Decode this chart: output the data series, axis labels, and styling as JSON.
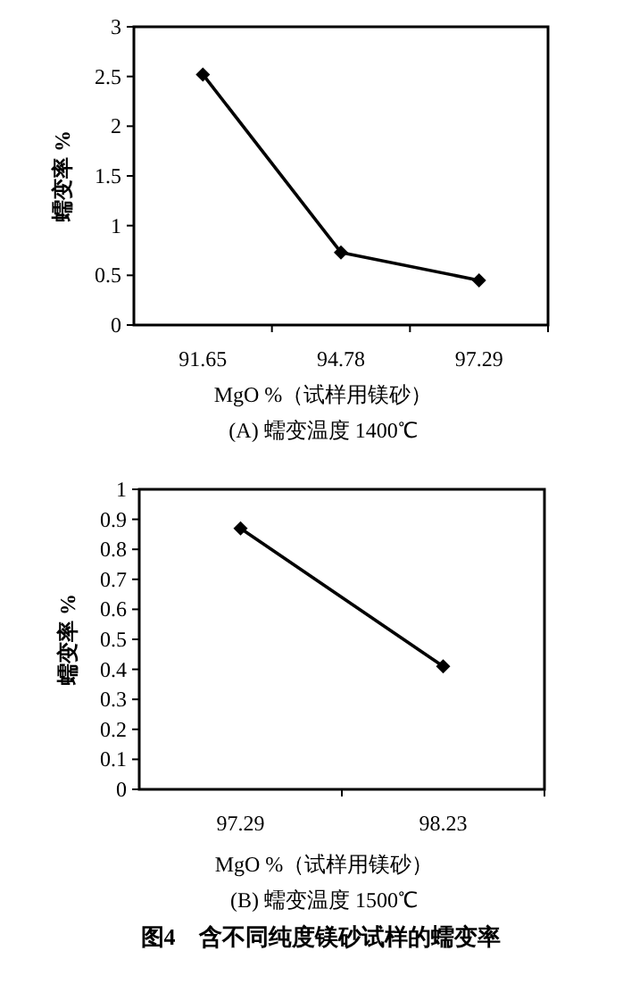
{
  "chart_data": [
    {
      "type": "line",
      "title": "(A) 蠕变温度 1400℃",
      "xlabel": "MgO %（试样用镁砂）",
      "ylabel": "蠕变率 %",
      "categories": [
        "91.65",
        "94.78",
        "97.29"
      ],
      "series": [
        {
          "color": "#000000",
          "values": [
            2.52,
            0.73,
            0.45
          ]
        }
      ],
      "ylim": [
        0,
        3
      ],
      "yticks": [
        0,
        0.5,
        1,
        1.5,
        2,
        2.5,
        3
      ],
      "marker": "diamond",
      "line_style": "solid",
      "grid": false
    },
    {
      "type": "line",
      "title": "(B) 蠕变温度 1500℃",
      "xlabel": "MgO %（试样用镁砂）",
      "ylabel": "蠕变率 %",
      "categories": [
        "97.29",
        "98.23"
      ],
      "series": [
        {
          "color": "#000000",
          "values": [
            0.87,
            0.41
          ]
        }
      ],
      "ylim": [
        0,
        1
      ],
      "yticks": [
        0,
        0.1,
        0.2,
        0.3,
        0.4,
        0.5,
        0.6,
        0.7,
        0.8,
        0.9,
        1
      ],
      "marker": "diamond",
      "line_style": "solid",
      "grid": false,
      "annotations": [
        "图4　含不同纯度镁砂试样的蠕变率"
      ]
    }
  ]
}
